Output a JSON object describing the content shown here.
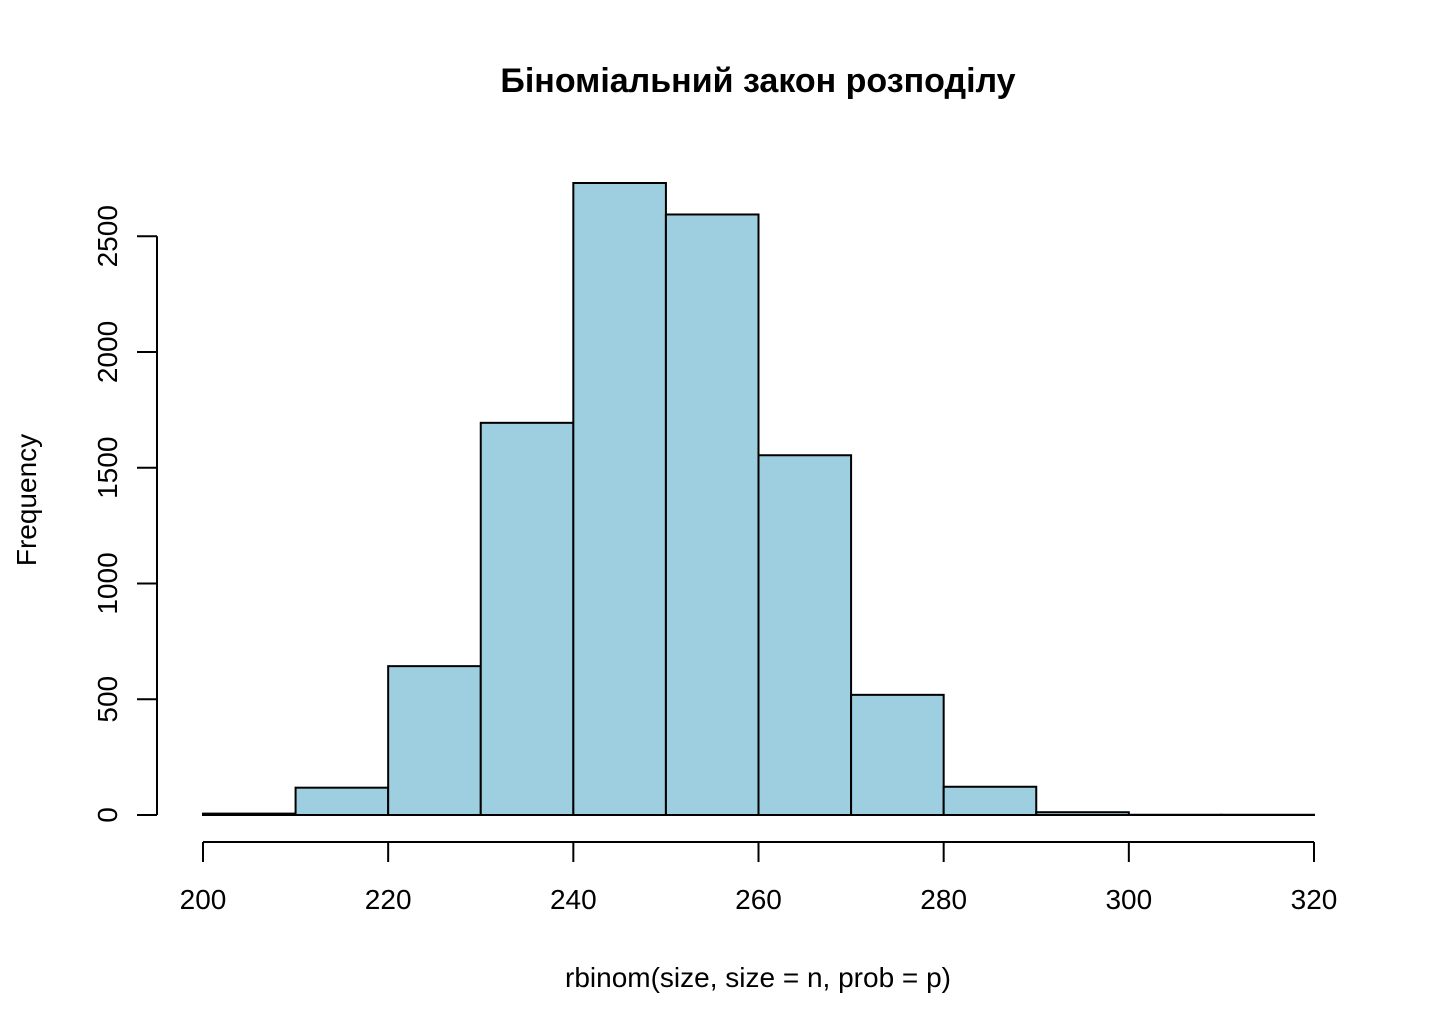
{
  "chart_data": {
    "type": "bar",
    "title": "Біноміальний закон розподілу",
    "xlabel": "rbinom(size, size = n, prob = p)",
    "ylabel": "Frequency",
    "xlim": [
      200,
      320
    ],
    "ylim": [
      0,
      2730
    ],
    "x_ticks": [
      200,
      220,
      240,
      260,
      280,
      300,
      320
    ],
    "y_ticks": [
      0,
      500,
      1000,
      1500,
      2000,
      2500
    ],
    "bins": [
      {
        "start": 200,
        "end": 210,
        "value": 6
      },
      {
        "start": 210,
        "end": 220,
        "value": 118
      },
      {
        "start": 220,
        "end": 230,
        "value": 643
      },
      {
        "start": 230,
        "end": 240,
        "value": 1694
      },
      {
        "start": 240,
        "end": 250,
        "value": 2730
      },
      {
        "start": 250,
        "end": 260,
        "value": 2594
      },
      {
        "start": 260,
        "end": 270,
        "value": 1554
      },
      {
        "start": 270,
        "end": 280,
        "value": 519
      },
      {
        "start": 280,
        "end": 290,
        "value": 122
      },
      {
        "start": 290,
        "end": 300,
        "value": 12
      },
      {
        "start": 300,
        "end": 310,
        "value": 1
      },
      {
        "start": 310,
        "end": 320,
        "value": 1
      }
    ],
    "bar_color": "#9ecfe0",
    "edge_color": "#000000",
    "grid": false,
    "legend": "none"
  }
}
